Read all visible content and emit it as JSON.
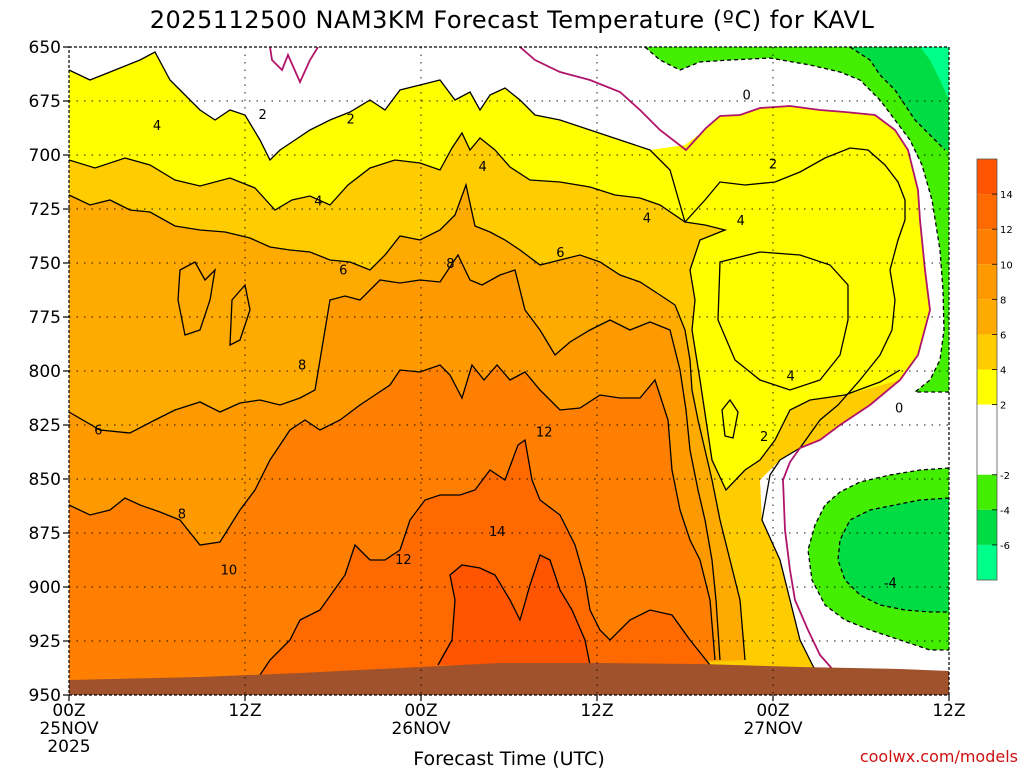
{
  "chart_data": {
    "type": "heatmap",
    "title": "2025112500 NAM3KM Forecast Temperature (ºC) for KAVL",
    "xlabel": "Forecast Time (UTC)",
    "ylabel": "",
    "credit": "coolwx.com/models",
    "x_ticks": [
      {
        "hour": 0,
        "label": "00Z",
        "sub": "25NOV",
        "sub2": "2025"
      },
      {
        "hour": 12,
        "label": "12Z",
        "sub": "",
        "sub2": ""
      },
      {
        "hour": 24,
        "label": "00Z",
        "sub": "26NOV",
        "sub2": ""
      },
      {
        "hour": 36,
        "label": "12Z",
        "sub": "",
        "sub2": ""
      },
      {
        "hour": 48,
        "label": "00Z",
        "sub": "27NOV",
        "sub2": ""
      },
      {
        "hour": 60,
        "label": "12Z",
        "sub": "",
        "sub2": ""
      }
    ],
    "x_range_hours": [
      0,
      60
    ],
    "y_ticks": [
      650,
      675,
      700,
      725,
      750,
      775,
      800,
      825,
      850,
      875,
      900,
      925,
      950
    ],
    "y_range_hpa": [
      650,
      950
    ],
    "colorbar": {
      "ticks": [
        14,
        12,
        10,
        8,
        6,
        4,
        2,
        -2,
        -4,
        -6
      ],
      "bands": [
        {
          "from": 14,
          "to": 16,
          "color": "#ff5500"
        },
        {
          "from": 12,
          "to": 14,
          "color": "#ff6a00"
        },
        {
          "from": 10,
          "to": 12,
          "color": "#ff8000"
        },
        {
          "from": 8,
          "to": 10,
          "color": "#ff9900"
        },
        {
          "from": 6,
          "to": 8,
          "color": "#ffaa00"
        },
        {
          "from": 4,
          "to": 6,
          "color": "#ffcc00"
        },
        {
          "from": 2,
          "to": 4,
          "color": "#ffff00"
        },
        {
          "from": -2,
          "to": 2,
          "color": "#ffffff"
        },
        {
          "from": -4,
          "to": -2,
          "color": "#44ee00"
        },
        {
          "from": -6,
          "to": -4,
          "color": "#00dd44"
        },
        {
          "from": -8,
          "to": -6,
          "color": "#00ff88"
        }
      ]
    },
    "contour_labels": [
      {
        "text": "2",
        "hour": 13.2,
        "p": 681
      },
      {
        "text": "2",
        "hour": 19.2,
        "p": 683
      },
      {
        "text": "4",
        "hour": 6.0,
        "p": 686
      },
      {
        "text": "4",
        "hour": 17.0,
        "p": 721
      },
      {
        "text": "4",
        "hour": 28.2,
        "p": 705
      },
      {
        "text": "4",
        "hour": 39.4,
        "p": 729
      },
      {
        "text": "4",
        "hour": 45.8,
        "p": 730
      },
      {
        "text": "4",
        "hour": 49.2,
        "p": 802
      },
      {
        "text": "0",
        "hour": 46.2,
        "p": 672
      },
      {
        "text": "0",
        "hour": 56.6,
        "p": 817
      },
      {
        "text": "2",
        "hour": 48.0,
        "p": 704
      },
      {
        "text": "2",
        "hour": 47.4,
        "p": 830
      },
      {
        "text": "6",
        "hour": 18.7,
        "p": 753
      },
      {
        "text": "6",
        "hour": 33.5,
        "p": 745
      },
      {
        "text": "6",
        "hour": 2.0,
        "p": 827
      },
      {
        "text": "8",
        "hour": 26.0,
        "p": 750
      },
      {
        "text": "8",
        "hour": 15.9,
        "p": 797
      },
      {
        "text": "8",
        "hour": 7.7,
        "p": 866
      },
      {
        "text": "10",
        "hour": 10.9,
        "p": 892
      },
      {
        "text": "12",
        "hour": 32.4,
        "p": 828
      },
      {
        "text": "12",
        "hour": 22.8,
        "p": 887
      },
      {
        "text": "14",
        "hour": 29.2,
        "p": 874
      },
      {
        "text": "-4",
        "hour": 56.0,
        "p": 898
      }
    ]
  }
}
